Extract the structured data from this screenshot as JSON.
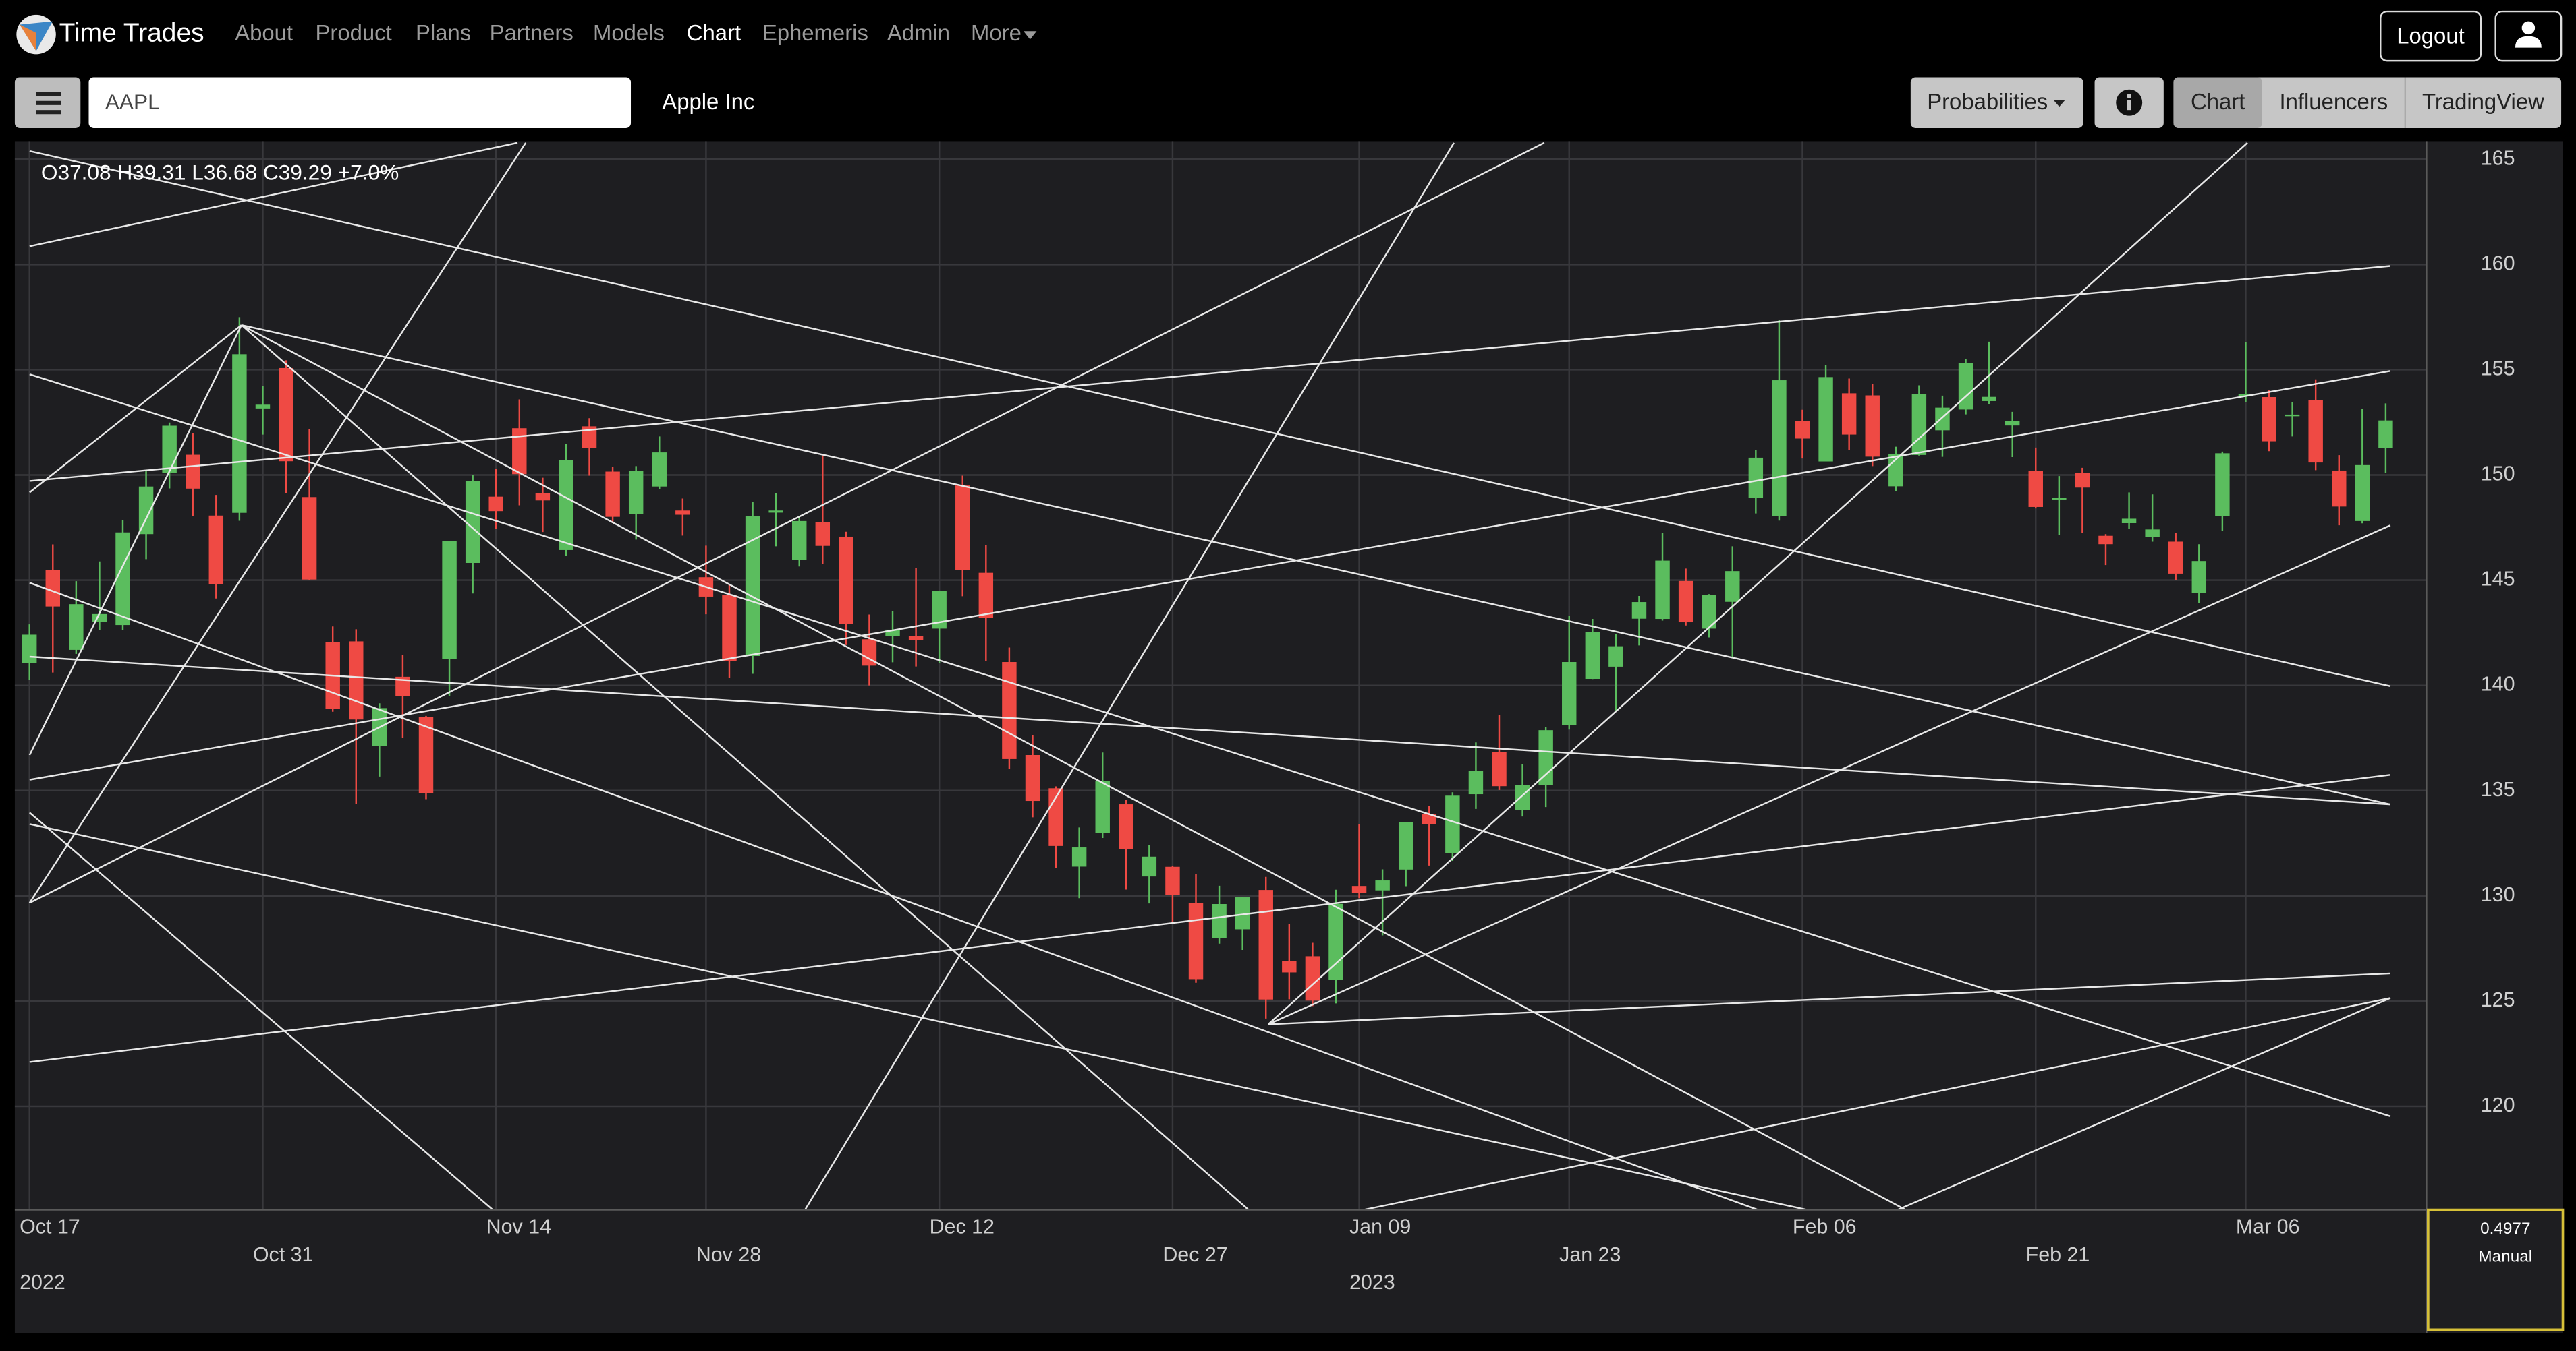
{
  "header": {
    "brand": "Time Trades",
    "nav": [
      "About",
      "Product",
      "Plans",
      "Partners",
      "Models",
      "Chart",
      "Ephemeris",
      "Admin",
      "More"
    ],
    "logout": "Logout"
  },
  "toolbar": {
    "symbol": "AAPL",
    "company": "Apple Inc",
    "probabilities": "Probabilities",
    "views": [
      "Chart",
      "Influencers",
      "TradingView"
    ]
  },
  "panel": {
    "value": "0.4977",
    "mode": "Manual"
  },
  "chart_data": {
    "type": "candlestick",
    "legend": "O37.08 H39.31 L36.68 C39.29 +7.0%",
    "up_color": "#5bbd5e",
    "down_color": "#ef4a44",
    "grid": true,
    "open": [
      141.07,
      145.49,
      141.69,
      143.02,
      142.87,
      147.19,
      150.09,
      150.96,
      148.07,
      148.2,
      153.16,
      155.08,
      148.95,
      142.06,
      142.09,
      137.11,
      140.41,
      138.5,
      141.24,
      145.82,
      148.97,
      152.22,
      149.13,
      146.43,
      152.31,
      150.16,
      148.13,
      149.45,
      148.31,
      145.14,
      144.29,
      141.4,
      148.21,
      145.96,
      147.77,
      147.07,
      142.19,
      142.36,
      142.34,
      142.7,
      149.5,
      145.35,
      141.11,
      136.69,
      135.11,
      131.39,
      132.98,
      134.35,
      130.92,
      131.38,
      129.67,
      127.99,
      128.41,
      130.28,
      126.89,
      127.13,
      126.01,
      130.47,
      130.26,
      131.25,
      133.88,
      132.03,
      134.83,
      136.82,
      134.08,
      135.28,
      138.12,
      140.31,
      140.89,
      143.17,
      143.16,
      144.96,
      142.7,
      143.97,
      148.9,
      148.03,
      152.57,
      150.64,
      153.88,
      153.78,
      149.46,
      150.95,
      152.12,
      153.11,
      153.51,
      152.35,
      150.2,
      148.87,
      150.09,
      147.11,
      147.71,
      147.05,
      146.83,
      144.38,
      148.04,
      153.79,
      153.7,
      152.81,
      153.56,
      150.21,
      147.81,
      151.28
    ],
    "high": [
      142.9,
      146.7,
      144.95,
      145.89,
      147.85,
      150.23,
      152.49,
      151.99,
      149.05,
      157.5,
      154.24,
      155.45,
      152.17,
      142.8,
      142.67,
      139.15,
      141.43,
      138.55,
      146.87,
      150.01,
      150.28,
      153.59,
      149.87,
      151.48,
      152.7,
      150.37,
      150.42,
      151.83,
      148.88,
      146.64,
      144.81,
      148.72,
      149.13,
      148,
      150.92,
      147.3,
      143.37,
      143.52,
      145.57,
      144.5,
      149.97,
      146.66,
      141.8,
      137.65,
      135.2,
      133.25,
      136.81,
      134.56,
      132.42,
      131.41,
      131.03,
      130.48,
      129.95,
      130.9,
      128.66,
      127.77,
      130.29,
      133.41,
      131.26,
      133.51,
      134.26,
      134.92,
      137.29,
      138.61,
      136.25,
      138.02,
      143.32,
      143.16,
      142.43,
      144.25,
      147.23,
      145.55,
      144.34,
      146.61,
      151.18,
      157.38,
      153.1,
      155.23,
      154.58,
      154.33,
      151.34,
      154.26,
      153.77,
      155.5,
      156.33,
      153,
      151.3,
      149.95,
      150.34,
      147.19,
      149.17,
      149.08,
      147.23,
      146.71,
      151.11,
      156.3,
      154.03,
      153.47,
      154.54,
      150.94,
      153.14,
      153.4
    ],
    "low": [
      140.27,
      140.61,
      141.5,
      142.65,
      142.65,
      146,
      149.36,
      148.04,
      144.13,
      147.82,
      151.92,
      149.13,
      145,
      138.75,
      134.38,
      135.67,
      137.49,
      134.59,
      139.5,
      144.37,
      147.43,
      148.56,
      147.29,
      146.15,
      149.97,
      147.72,
      146.93,
      149.34,
      147.12,
      143.38,
      140.35,
      140.55,
      146.61,
      145.65,
      145.77,
      141.92,
      140,
      141.1,
      140.9,
      141.06,
      144.24,
      141.16,
      136.03,
      133.73,
      131.32,
      129.89,
      132.75,
      130.3,
      129.64,
      128.72,
      125.87,
      127.73,
      127.43,
      124.17,
      125.08,
      124.76,
      124.89,
      129.89,
      128.12,
      130.46,
      131.44,
      131.66,
      134.13,
      135.03,
      133.77,
      134.22,
      137.9,
      140.3,
      138.81,
      141.9,
      143.08,
      142.85,
      142.28,
      141.32,
      148.17,
      147.83,
      150.78,
      150.64,
      151.17,
      150.42,
      149.22,
      150.92,
      150.86,
      152.88,
      153.35,
      150.85,
      148.41,
      147.16,
      147.24,
      145.72,
      147.45,
      146.83,
      145.01,
      143.9,
      147.33,
      153.46,
      151.13,
      151.83,
      150.23,
      147.61,
      147.7,
      150.1
    ],
    "close": [
      142.41,
      143.75,
      143.86,
      143.39,
      147.27,
      149.45,
      152.34,
      149.35,
      144.8,
      155.74,
      153.34,
      150.65,
      145.03,
      138.88,
      138.38,
      138.92,
      139.5,
      134.87,
      146.87,
      149.7,
      148.28,
      150.04,
      148.79,
      150.72,
      151.29,
      148.01,
      150.18,
      151.07,
      148.11,
      144.22,
      141.17,
      148.03,
      148.31,
      147.81,
      146.63,
      142.91,
      140.94,
      142.65,
      142.16,
      144.49,
      145.47,
      143.21,
      136.5,
      134.51,
      132.37,
      132.3,
      135.45,
      132.23,
      131.86,
      130.03,
      126.04,
      129.61,
      129.93,
      125.07,
      126.36,
      125.02,
      129.62,
      130.15,
      130.73,
      133.49,
      133.41,
      134.76,
      135.94,
      135.21,
      135.27,
      137.87,
      141.11,
      142.53,
      141.86,
      143.96,
      145.93,
      143,
      144.29,
      145.43,
      150.82,
      154.5,
      151.73,
      154.65,
      151.92,
      150.87,
      151.01,
      153.85,
      153.2,
      155.33,
      153.71,
      152.55,
      148.48,
      148.91,
      149.4,
      146.71,
      147.92,
      147.41,
      145.31,
      145.91,
      151.03,
      153.83,
      151.6,
      152.87,
      150.59,
      148.5,
      150.47,
      152.59
    ],
    "xlim": [
      -0.63,
      102.75
    ],
    "xticks": [
      {
        "value": 0,
        "label": "Oct 17"
      },
      {
        "value": 10,
        "label": "Oct 31"
      },
      {
        "value": 20,
        "label": "Nov 14"
      },
      {
        "value": 29,
        "label": "Nov 28"
      },
      {
        "value": 39,
        "label": "Dec 12"
      },
      {
        "value": 49,
        "label": "Dec 27"
      },
      {
        "value": 57,
        "label": "Jan 09"
      },
      {
        "value": 66,
        "label": "Jan 23"
      },
      {
        "value": 76,
        "label": "Feb 06"
      },
      {
        "value": 86,
        "label": "Feb 21"
      },
      {
        "value": 95,
        "label": "Mar 06"
      }
    ],
    "year_ticks": [
      {
        "value": 0,
        "label": "2022"
      },
      {
        "value": 57,
        "label": "2023"
      }
    ],
    "ylim": [
      115.08,
      165.86
    ],
    "yticks": [
      120,
      125,
      130,
      135,
      140,
      145,
      150,
      155,
      160,
      165
    ]
  }
}
